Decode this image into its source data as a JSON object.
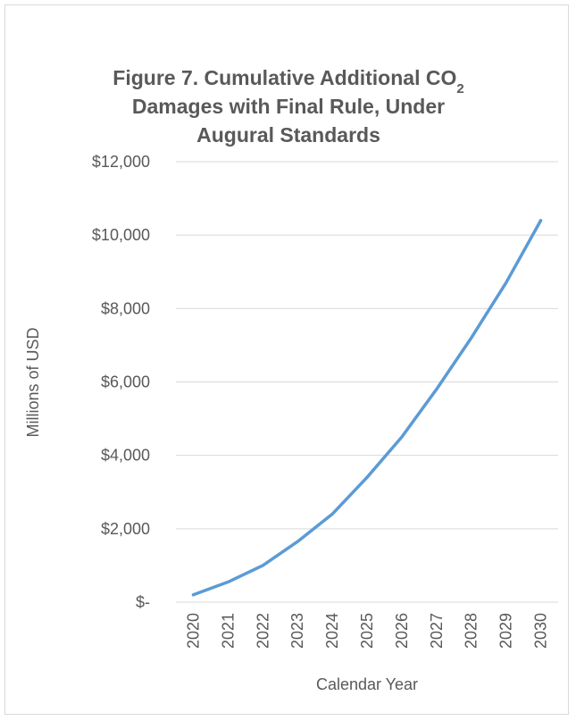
{
  "chart_data": {
    "type": "line",
    "title": {
      "line1": "Figure 7. Cumulative Additional CO",
      "subscript": "2",
      "line2": "Damages with Final Rule, Under",
      "line3": "Augural Standards"
    },
    "x_label": "Calendar Year",
    "y_label": "Millions of USD",
    "categories": [
      "2020",
      "2021",
      "2022",
      "2023",
      "2024",
      "2025",
      "2026",
      "2027",
      "2028",
      "2029",
      "2030"
    ],
    "series": [
      {
        "name": "Cumulative Additional CO2 Damages",
        "color": "#5b9bd5",
        "values": [
          200,
          550,
          1000,
          1650,
          2400,
          3400,
          4500,
          5800,
          7200,
          8700,
          10400
        ]
      }
    ],
    "ylim": [
      0,
      12000
    ],
    "yticks": [
      {
        "value": 0,
        "label": "$-"
      },
      {
        "value": 2000,
        "label": "$2,000"
      },
      {
        "value": 4000,
        "label": "$4,000"
      },
      {
        "value": 6000,
        "label": "$6,000"
      },
      {
        "value": 8000,
        "label": "$8,000"
      },
      {
        "value": 10000,
        "label": "$10,000"
      },
      {
        "value": 12000,
        "label": "$12,000"
      }
    ],
    "grid": true
  }
}
